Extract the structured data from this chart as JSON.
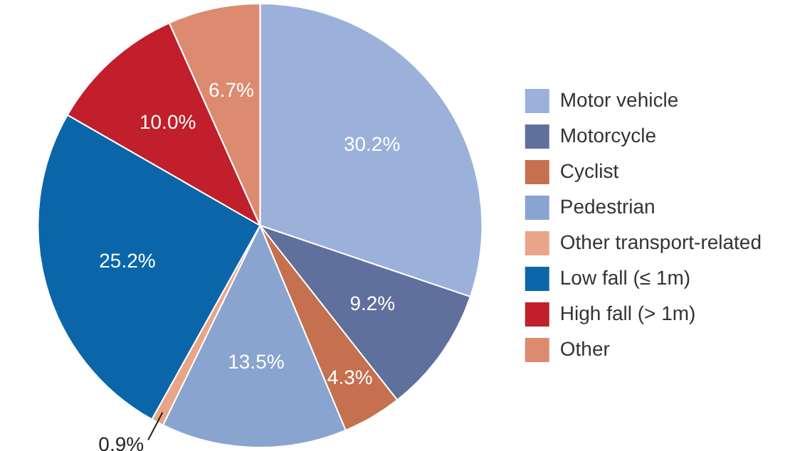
{
  "chart_data": {
    "type": "pie",
    "categories": [
      "Motor vehicle",
      "Motorcycle",
      "Cyclist",
      "Pedestrian",
      "Other transport-related",
      "Low fall (≤ 1m)",
      "High fall (> 1m)",
      "Other"
    ],
    "values": [
      30.2,
      9.2,
      4.3,
      13.5,
      0.9,
      25.2,
      10.0,
      6.7
    ],
    "colors": [
      "#9bb1da",
      "#5f709c",
      "#c5704f",
      "#8aa4d0",
      "#e9a588",
      "#0b66a9",
      "#c11f2b",
      "#dc8a70"
    ],
    "value_labels": [
      "30.2%",
      "9.2%",
      "4.3%",
      "13.5%",
      "0.9%",
      "25.2%",
      "10.0%",
      "6.7%"
    ],
    "legend": "right"
  }
}
